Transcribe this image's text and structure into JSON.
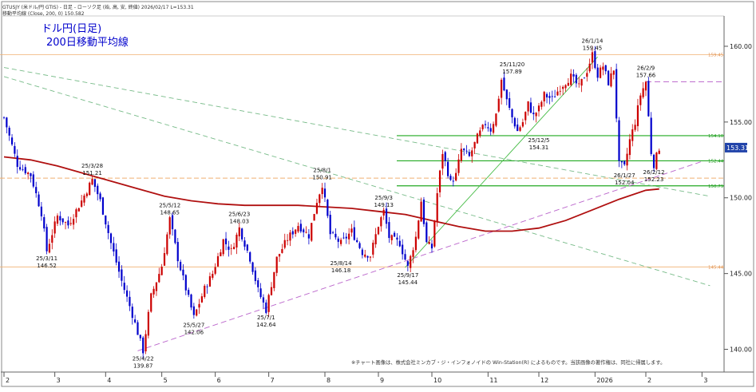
{
  "header": {
    "line1": "GTUSJY (米ドル/円 GTIS) - 日足 - ローソク足 (始, 高, 安, 終値)  2026/02/17 L=153.31",
    "line2": "移動平均線 (Close, 200, 0) 150.582"
  },
  "title": {
    "line1": "ドル円(日足)",
    "line2": "200日移動平均線"
  },
  "copyright": "※チャート画像は、株式会社ミンカブ・ジ・インフォノイドの Win-Station(R) によるものです。当該画像の著作権は、同社に帰属します。",
  "colors": {
    "candle_up": "#cc0000",
    "candle_down": "#0000cc",
    "ma200": "#b01010",
    "support_lines": "#22aa22",
    "up_trend": "#44bb44",
    "dashed_trend": "#77bb88",
    "purple_trend": "#bb66cc",
    "orange_level": "#f0b070",
    "current_price_box": "#2244aa"
  },
  "chart_data": {
    "type": "candlestick",
    "ylim": [
      138.5,
      162
    ],
    "y_ticks": [
      140,
      145,
      150,
      155,
      160
    ],
    "y_tick_labels": [
      "140.00",
      "145.00",
      "150.00",
      "155.00",
      "160.00"
    ],
    "x_months": [
      {
        "label": "2",
        "t": 0
      },
      {
        "label": "3",
        "t": 19
      },
      {
        "label": "4",
        "t": 38
      },
      {
        "label": "5",
        "t": 59
      },
      {
        "label": "6",
        "t": 79
      },
      {
        "label": "7",
        "t": 99
      },
      {
        "label": "8",
        "t": 120
      },
      {
        "label": "9",
        "t": 140
      },
      {
        "label": "10",
        "t": 160
      },
      {
        "label": "11",
        "t": 181
      },
      {
        "label": "12",
        "t": 200
      },
      {
        "label": "2026",
        "t": 221
      },
      {
        "label": "2",
        "t": 240
      },
      {
        "label": "3",
        "t": 261
      }
    ],
    "price_path": [
      [
        0,
        155.3
      ],
      [
        5,
        152.2
      ],
      [
        10,
        151.5
      ],
      [
        14,
        149.0
      ],
      [
        16,
        146.5
      ],
      [
        20,
        148.8
      ],
      [
        24,
        148.2
      ],
      [
        29,
        149.8
      ],
      [
        33,
        151.2
      ],
      [
        36,
        149.8
      ],
      [
        40,
        147.0
      ],
      [
        44,
        144.5
      ],
      [
        48,
        142.3
      ],
      [
        52,
        139.9
      ],
      [
        55,
        143.5
      ],
      [
        59,
        145.5
      ],
      [
        62,
        148.6
      ],
      [
        65,
        146.0
      ],
      [
        68,
        144.0
      ],
      [
        71,
        142.1
      ],
      [
        75,
        144.0
      ],
      [
        78,
        145.0
      ],
      [
        82,
        147.2
      ],
      [
        85,
        146.5
      ],
      [
        88,
        148.0
      ],
      [
        92,
        146.0
      ],
      [
        95,
        143.9
      ],
      [
        98,
        142.6
      ],
      [
        102,
        146.0
      ],
      [
        106,
        147.3
      ],
      [
        110,
        148.2
      ],
      [
        114,
        147.5
      ],
      [
        117,
        149.8
      ],
      [
        119,
        150.9
      ],
      [
        122,
        147.6
      ],
      [
        126,
        147.0
      ],
      [
        130,
        147.8
      ],
      [
        134,
        146.4
      ],
      [
        137,
        146.2
      ],
      [
        140,
        148.2
      ],
      [
        142,
        149.1
      ],
      [
        144,
        147.4
      ],
      [
        148,
        147.0
      ],
      [
        151,
        145.4
      ],
      [
        154,
        147.4
      ],
      [
        156,
        149.8
      ],
      [
        158,
        147.0
      ],
      [
        160,
        146.7
      ],
      [
        162,
        150.3
      ],
      [
        164,
        153.0
      ],
      [
        167,
        151.0
      ],
      [
        169,
        151.5
      ],
      [
        171,
        153.2
      ],
      [
        174,
        152.7
      ],
      [
        177,
        154.0
      ],
      [
        180,
        154.9
      ],
      [
        182,
        154.5
      ],
      [
        184,
        155.5
      ],
      [
        186,
        157.8
      ],
      [
        188,
        156.4
      ],
      [
        190,
        155.3
      ],
      [
        192,
        154.4
      ],
      [
        194,
        155.0
      ],
      [
        196,
        156.2
      ],
      [
        198,
        155.4
      ],
      [
        200,
        155.9
      ],
      [
        202,
        156.8
      ],
      [
        205,
        156.5
      ],
      [
        208,
        157.3
      ],
      [
        212,
        158.0
      ],
      [
        215,
        157.3
      ],
      [
        218,
        158.4
      ],
      [
        220,
        159.45
      ],
      [
        222,
        158.1
      ],
      [
        224,
        158.7
      ],
      [
        226,
        157.6
      ],
      [
        228,
        158.5
      ],
      [
        230,
        152.2
      ],
      [
        232,
        152.0
      ],
      [
        234,
        153.8
      ],
      [
        236,
        155.0
      ],
      [
        238,
        156.8
      ],
      [
        240,
        157.66
      ],
      [
        242,
        153.0
      ],
      [
        243,
        152.2
      ],
      [
        245,
        153.3
      ]
    ],
    "ma200_path": [
      [
        0,
        152.7
      ],
      [
        10,
        152.5
      ],
      [
        20,
        152.1
      ],
      [
        30,
        151.6
      ],
      [
        40,
        151.1
      ],
      [
        50,
        150.6
      ],
      [
        60,
        150.1
      ],
      [
        70,
        149.8
      ],
      [
        80,
        149.6
      ],
      [
        90,
        149.5
      ],
      [
        100,
        149.5
      ],
      [
        110,
        149.5
      ],
      [
        120,
        149.4
      ],
      [
        130,
        149.3
      ],
      [
        140,
        149.1
      ],
      [
        150,
        148.9
      ],
      [
        160,
        148.5
      ],
      [
        170,
        148.1
      ],
      [
        180,
        147.8
      ],
      [
        190,
        147.8
      ],
      [
        200,
        148.0
      ],
      [
        210,
        148.5
      ],
      [
        220,
        149.2
      ],
      [
        230,
        149.9
      ],
      [
        240,
        150.5
      ],
      [
        245,
        150.58
      ]
    ],
    "horizontal_levels": [
      {
        "price": 159.45,
        "label": "159.45",
        "style": "orange-solid"
      },
      {
        "price": 157.66,
        "label": "",
        "style": "purple-dashed",
        "t_start": 240
      },
      {
        "price": 154.1,
        "label": "154.10",
        "style": "green"
      },
      {
        "price": 152.44,
        "label": "152.44",
        "style": "green"
      },
      {
        "price": 151.3,
        "label": "",
        "style": "orange-dashed"
      },
      {
        "price": 150.79,
        "label": "150.79",
        "style": "green"
      },
      {
        "price": 145.44,
        "label": "145.44",
        "style": "orange-solid"
      }
    ],
    "trend_lines": [
      {
        "style": "dashed-green",
        "p1": [
          0,
          158.6
        ],
        "p2": [
          264,
          150.1
        ]
      },
      {
        "style": "dashed-green",
        "p1": [
          0,
          158.0
        ],
        "p2": [
          264,
          144.2
        ]
      },
      {
        "style": "dashed-purple",
        "p1": [
          50,
          139.9
        ],
        "p2": [
          261,
          152.4
        ]
      },
      {
        "style": "solid-green",
        "p1": [
          150,
          145.4
        ],
        "p2": [
          222,
          159.3
        ]
      }
    ],
    "current_price": {
      "value": 153.31,
      "label": "153.31"
    },
    "annotations": [
      {
        "t": 33,
        "price": 151.2,
        "date": "25/3/28",
        "value": "151.21",
        "pos": "above"
      },
      {
        "t": 16,
        "price": 146.5,
        "date": "25/3/11",
        "value": "146.52",
        "pos": "below"
      },
      {
        "t": 52,
        "price": 139.9,
        "date": "25/4/22",
        "value": "139.87",
        "pos": "below"
      },
      {
        "t": 62,
        "price": 148.6,
        "date": "25/5/12",
        "value": "148.65",
        "pos": "above"
      },
      {
        "t": 71,
        "price": 142.1,
        "date": "25/5/27",
        "value": "142.06",
        "pos": "below"
      },
      {
        "t": 88,
        "price": 148.0,
        "date": "25/6/23",
        "value": "148.03",
        "pos": "above"
      },
      {
        "t": 98,
        "price": 142.6,
        "date": "25/7/1",
        "value": "142.64",
        "pos": "below"
      },
      {
        "t": 119,
        "price": 150.9,
        "date": "25/8/1",
        "value": "150.91",
        "pos": "above"
      },
      {
        "t": 126,
        "price": 146.2,
        "date": "25/8/14",
        "value": "146.18",
        "pos": "below"
      },
      {
        "t": 142,
        "price": 149.1,
        "date": "25/9/3",
        "value": "149.13",
        "pos": "above"
      },
      {
        "t": 151,
        "price": 145.4,
        "date": "25/9/17",
        "value": "145.44",
        "pos": "below"
      },
      {
        "t": 190,
        "price": 157.9,
        "date": "25/11/20",
        "value": "157.89",
        "pos": "above"
      },
      {
        "t": 200,
        "price": 154.3,
        "date": "25/12/5",
        "value": "154.31",
        "pos": "below"
      },
      {
        "t": 220,
        "price": 159.45,
        "date": "26/1/14",
        "value": "159.45",
        "pos": "above"
      },
      {
        "t": 232,
        "price": 152.0,
        "date": "26/1/27",
        "value": "152.04",
        "pos": "below"
      },
      {
        "t": 240,
        "price": 157.66,
        "date": "26/2/9",
        "value": "157.66",
        "pos": "above"
      },
      {
        "t": 243,
        "price": 152.2,
        "date": "26/2/12",
        "value": "152.23",
        "pos": "below"
      }
    ]
  }
}
